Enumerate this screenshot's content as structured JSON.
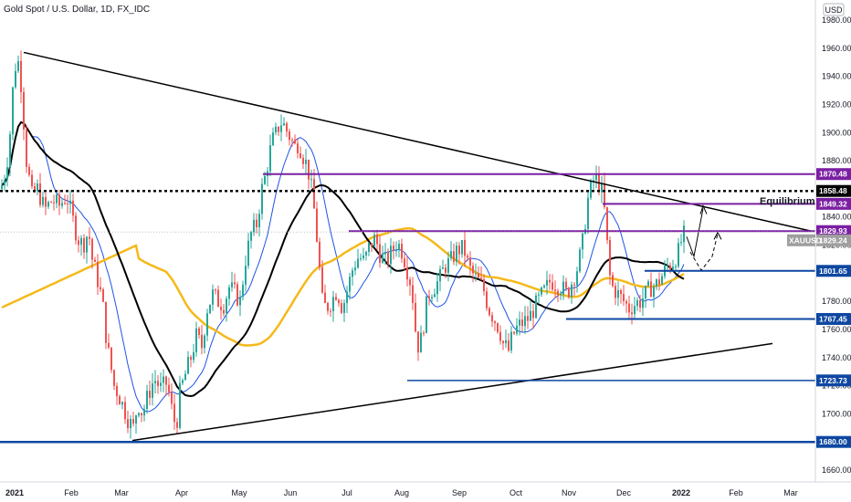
{
  "header": {
    "title": "Gold Spot / U.S. Dollar, 1D, FX_IDC",
    "currency": "USD"
  },
  "chart_data": {
    "type": "candlestick",
    "symbol": "XAUUSD",
    "ylim": [
      1650,
      1990
    ],
    "y_ticks": [
      "1980.00",
      "1960.00",
      "1940.00",
      "1920.00",
      "1900.00",
      "1880.00",
      "1860.00",
      "1840.00",
      "1820.00",
      "1800.00",
      "1780.00",
      "1760.00",
      "1740.00",
      "1720.00",
      "1700.00",
      "1680.00",
      "1660.00"
    ],
    "x_labels": [
      "2021",
      "Feb",
      "Mar",
      "Apr",
      "May",
      "Jun",
      "Jul",
      "Aug",
      "Sep",
      "Oct",
      "Nov",
      "Dec",
      "2022",
      "Feb",
      "Mar"
    ],
    "colors": {
      "up": "#26a69a",
      "down": "#ef5350",
      "ma_fast": "#1e53e5",
      "ma_mid": "#000000",
      "ma_slow": "#f5b91a",
      "purple": "#7b1fa2",
      "blue": "#0d47a1"
    },
    "levels": [
      {
        "price": 1870.48,
        "label": "1870.48",
        "color": "#7b1fa2"
      },
      {
        "price": 1858.48,
        "label": "1858.48",
        "color": "#000000"
      },
      {
        "price": 1849.32,
        "label": "1849.32",
        "color": "#7b1fa2"
      },
      {
        "price": 1829.93,
        "label": "1829.93",
        "color": "#7b1fa2"
      },
      {
        "price": 1829.24,
        "label": "1829.24",
        "color": "#9e9e9e"
      },
      {
        "price": 1801.65,
        "label": "1801.65",
        "color": "#0d47a1"
      },
      {
        "price": 1767.45,
        "label": "1767.45",
        "color": "#0d47a1"
      },
      {
        "price": 1723.73,
        "label": "1723.73",
        "color": "#0d47a1"
      },
      {
        "price": 1680.0,
        "label": "1680.00",
        "color": "#0d47a1"
      }
    ],
    "annotations": {
      "equilibrium": "Equilibrium",
      "symbol_tag": "XAUUSD"
    },
    "ohlc_keypoints": [
      [
        0,
        1860
      ],
      [
        6,
        1875
      ],
      [
        10,
        1900
      ],
      [
        14,
        1940
      ],
      [
        18,
        1955
      ],
      [
        22,
        1935
      ],
      [
        28,
        1880
      ],
      [
        34,
        1855
      ],
      [
        40,
        1860
      ],
      [
        48,
        1845
      ],
      [
        56,
        1852
      ],
      [
        64,
        1848
      ],
      [
        72,
        1855
      ],
      [
        78,
        1840
      ],
      [
        84,
        1825
      ],
      [
        90,
        1820
      ],
      [
        96,
        1830
      ],
      [
        100,
        1810
      ],
      [
        104,
        1800
      ],
      [
        108,
        1790
      ],
      [
        112,
        1775
      ],
      [
        116,
        1750
      ],
      [
        120,
        1735
      ],
      [
        124,
        1720
      ],
      [
        128,
        1715
      ],
      [
        134,
        1705
      ],
      [
        140,
        1695
      ],
      [
        145,
        1690
      ],
      [
        150,
        1708
      ],
      [
        155,
        1700
      ],
      [
        162,
        1715
      ],
      [
        168,
        1725
      ],
      [
        175,
        1718
      ],
      [
        182,
        1722
      ],
      [
        188,
        1700
      ],
      [
        192,
        1690
      ],
      [
        196,
        1715
      ],
      [
        202,
        1728
      ],
      [
        208,
        1740
      ],
      [
        214,
        1755
      ],
      [
        220,
        1748
      ],
      [
        226,
        1775
      ],
      [
        232,
        1785
      ],
      [
        238,
        1780
      ],
      [
        244,
        1778
      ],
      [
        250,
        1790
      ],
      [
        256,
        1786
      ],
      [
        262,
        1780
      ],
      [
        268,
        1810
      ],
      [
        274,
        1828
      ],
      [
        280,
        1835
      ],
      [
        286,
        1860
      ],
      [
        290,
        1870
      ],
      [
        294,
        1885
      ],
      [
        298,
        1895
      ],
      [
        302,
        1900
      ],
      [
        306,
        1908
      ],
      [
        310,
        1905
      ],
      [
        314,
        1900
      ],
      [
        318,
        1895
      ],
      [
        322,
        1890
      ],
      [
        326,
        1893
      ],
      [
        330,
        1885
      ],
      [
        336,
        1875
      ],
      [
        340,
        1860
      ],
      [
        344,
        1840
      ],
      [
        348,
        1810
      ],
      [
        352,
        1780
      ],
      [
        356,
        1775
      ],
      [
        362,
        1780
      ],
      [
        368,
        1788
      ],
      [
        374,
        1775
      ],
      [
        380,
        1790
      ],
      [
        386,
        1805
      ],
      [
        392,
        1812
      ],
      [
        398,
        1808
      ],
      [
        404,
        1820
      ],
      [
        410,
        1825
      ],
      [
        416,
        1812
      ],
      [
        422,
        1808
      ],
      [
        428,
        1815
      ],
      [
        434,
        1822
      ],
      [
        440,
        1815
      ],
      [
        446,
        1800
      ],
      [
        450,
        1790
      ],
      [
        454,
        1760
      ],
      [
        458,
        1745
      ],
      [
        462,
        1760
      ],
      [
        468,
        1785
      ],
      [
        474,
        1790
      ],
      [
        480,
        1795
      ],
      [
        486,
        1805
      ],
      [
        492,
        1808
      ],
      [
        498,
        1815
      ],
      [
        504,
        1818
      ],
      [
        508,
        1815
      ],
      [
        512,
        1805
      ],
      [
        516,
        1800
      ],
      [
        522,
        1795
      ],
      [
        528,
        1790
      ],
      [
        534,
        1775
      ],
      [
        540,
        1768
      ],
      [
        546,
        1760
      ],
      [
        550,
        1750
      ],
      [
        556,
        1745
      ],
      [
        560,
        1755
      ],
      [
        566,
        1762
      ],
      [
        572,
        1765
      ],
      [
        578,
        1768
      ],
      [
        584,
        1775
      ],
      [
        590,
        1782
      ],
      [
        596,
        1788
      ],
      [
        602,
        1795
      ],
      [
        608,
        1792
      ],
      [
        614,
        1790
      ],
      [
        620,
        1785
      ],
      [
        626,
        1795
      ],
      [
        632,
        1805
      ],
      [
        638,
        1825
      ],
      [
        642,
        1850
      ],
      [
        646,
        1860
      ],
      [
        650,
        1868
      ],
      [
        654,
        1865
      ],
      [
        658,
        1858
      ],
      [
        662,
        1840
      ],
      [
        666,
        1800
      ],
      [
        670,
        1790
      ],
      [
        676,
        1785
      ],
      [
        682,
        1780
      ],
      [
        688,
        1775
      ],
      [
        694,
        1778
      ],
      [
        700,
        1780
      ],
      [
        706,
        1785
      ],
      [
        712,
        1790
      ],
      [
        718,
        1792
      ],
      [
        724,
        1798
      ],
      [
        730,
        1805
      ],
      [
        736,
        1808
      ],
      [
        742,
        1815
      ],
      [
        746,
        1825
      ],
      [
        750,
        1829
      ]
    ]
  }
}
